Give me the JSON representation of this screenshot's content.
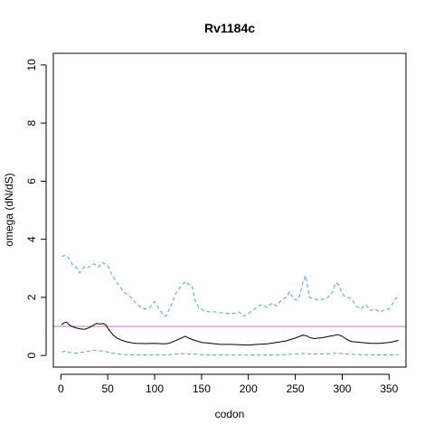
{
  "chart_data": {
    "type": "line",
    "title": "Rv1184c",
    "xlabel": "codon",
    "ylabel": "omega (dN/dS)",
    "xlim": [
      -8,
      368
    ],
    "ylim": [
      -0.4,
      10.4
    ],
    "xticks": [
      0,
      50,
      100,
      150,
      200,
      250,
      300,
      350
    ],
    "yticks": [
      0,
      2,
      4,
      6,
      8,
      10
    ],
    "reference_line": {
      "y": 1,
      "color": "#c080c0"
    },
    "series": [
      {
        "style": "solid",
        "color": "#000000",
        "x": [
          1,
          3,
          6,
          9,
          12,
          16,
          20,
          25,
          30,
          35,
          38,
          42,
          45,
          48,
          52,
          56,
          60,
          65,
          70,
          75,
          80,
          90,
          100,
          110,
          115,
          120,
          125,
          130,
          133,
          136,
          140,
          145,
          150,
          160,
          170,
          180,
          190,
          200,
          210,
          220,
          230,
          240,
          245,
          250,
          255,
          258,
          262,
          265,
          270,
          275,
          280,
          285,
          290,
          295,
          300,
          305,
          310,
          320,
          330,
          340,
          350,
          355,
          360
        ],
        "y": [
          1.05,
          1.12,
          1.15,
          1.05,
          1.0,
          0.95,
          0.92,
          0.9,
          0.95,
          1.05,
          1.1,
          1.08,
          1.1,
          1.05,
          0.85,
          0.7,
          0.6,
          0.52,
          0.47,
          0.44,
          0.42,
          0.41,
          0.42,
          0.4,
          0.42,
          0.48,
          0.55,
          0.62,
          0.66,
          0.6,
          0.55,
          0.5,
          0.45,
          0.42,
          0.38,
          0.38,
          0.37,
          0.36,
          0.38,
          0.4,
          0.45,
          0.5,
          0.55,
          0.6,
          0.66,
          0.7,
          0.68,
          0.62,
          0.58,
          0.6,
          0.62,
          0.65,
          0.68,
          0.72,
          0.66,
          0.55,
          0.48,
          0.45,
          0.42,
          0.42,
          0.45,
          0.48,
          0.52
        ]
      },
      {
        "style": "dashed",
        "color": "#3fa7d6",
        "x": [
          1,
          4,
          7,
          10,
          13,
          16,
          18,
          20,
          22,
          25,
          28,
          32,
          36,
          40,
          44,
          47,
          50,
          54,
          58,
          62,
          66,
          70,
          75,
          80,
          85,
          90,
          95,
          98,
          100,
          103,
          106,
          109,
          112,
          115,
          118,
          122,
          126,
          130,
          133,
          136,
          140,
          143,
          147,
          152,
          158,
          165,
          175,
          185,
          190,
          195,
          200,
          205,
          210,
          215,
          220,
          225,
          230,
          235,
          240,
          244,
          248,
          252,
          255,
          258,
          261,
          265,
          270,
          275,
          280,
          285,
          290,
          293,
          296,
          299,
          302,
          306,
          310,
          315,
          320,
          325,
          330,
          335,
          340,
          345,
          350,
          355,
          360
        ],
        "y": [
          3.4,
          3.45,
          3.4,
          3.25,
          3.1,
          3.05,
          2.95,
          2.85,
          2.9,
          3.05,
          3.0,
          3.1,
          3.15,
          3.05,
          3.2,
          3.15,
          3.1,
          2.8,
          2.6,
          2.4,
          2.25,
          2.1,
          2.0,
          1.8,
          1.65,
          1.6,
          1.65,
          1.8,
          1.85,
          1.7,
          1.55,
          1.4,
          1.35,
          1.55,
          1.75,
          2.1,
          2.3,
          2.45,
          2.55,
          2.45,
          2.4,
          1.9,
          1.65,
          1.55,
          1.5,
          1.5,
          1.45,
          1.45,
          1.5,
          1.35,
          1.45,
          1.55,
          1.7,
          1.75,
          1.65,
          1.8,
          1.7,
          1.9,
          2.0,
          2.2,
          1.95,
          1.9,
          2.1,
          2.5,
          2.75,
          2.0,
          1.95,
          1.9,
          1.95,
          2.0,
          2.2,
          2.5,
          2.45,
          2.2,
          2.05,
          2.0,
          1.95,
          1.7,
          1.6,
          1.75,
          1.55,
          1.6,
          1.5,
          1.55,
          1.6,
          1.85,
          2.1
        ]
      },
      {
        "style": "dashed",
        "color": "#3fa7d6",
        "x": [
          1,
          5,
          10,
          15,
          20,
          25,
          30,
          35,
          40,
          45,
          50,
          55,
          60,
          70,
          80,
          90,
          100,
          110,
          120,
          130,
          140,
          150,
          160,
          170,
          180,
          190,
          200,
          210,
          220,
          230,
          240,
          250,
          255,
          260,
          265,
          270,
          280,
          290,
          295,
          300,
          310,
          320,
          330,
          340,
          350,
          360
        ],
        "y": [
          0.12,
          0.15,
          0.1,
          0.08,
          0.1,
          0.12,
          0.15,
          0.18,
          0.16,
          0.15,
          0.12,
          0.08,
          0.05,
          0.03,
          0.02,
          0.02,
          0.03,
          0.02,
          0.04,
          0.06,
          0.05,
          0.03,
          0.02,
          0.02,
          0.01,
          0.01,
          0.01,
          0.01,
          0.02,
          0.02,
          0.03,
          0.05,
          0.06,
          0.07,
          0.06,
          0.05,
          0.05,
          0.07,
          0.08,
          0.06,
          0.04,
          0.03,
          0.03,
          0.02,
          0.02,
          0.03
        ]
      }
    ]
  }
}
